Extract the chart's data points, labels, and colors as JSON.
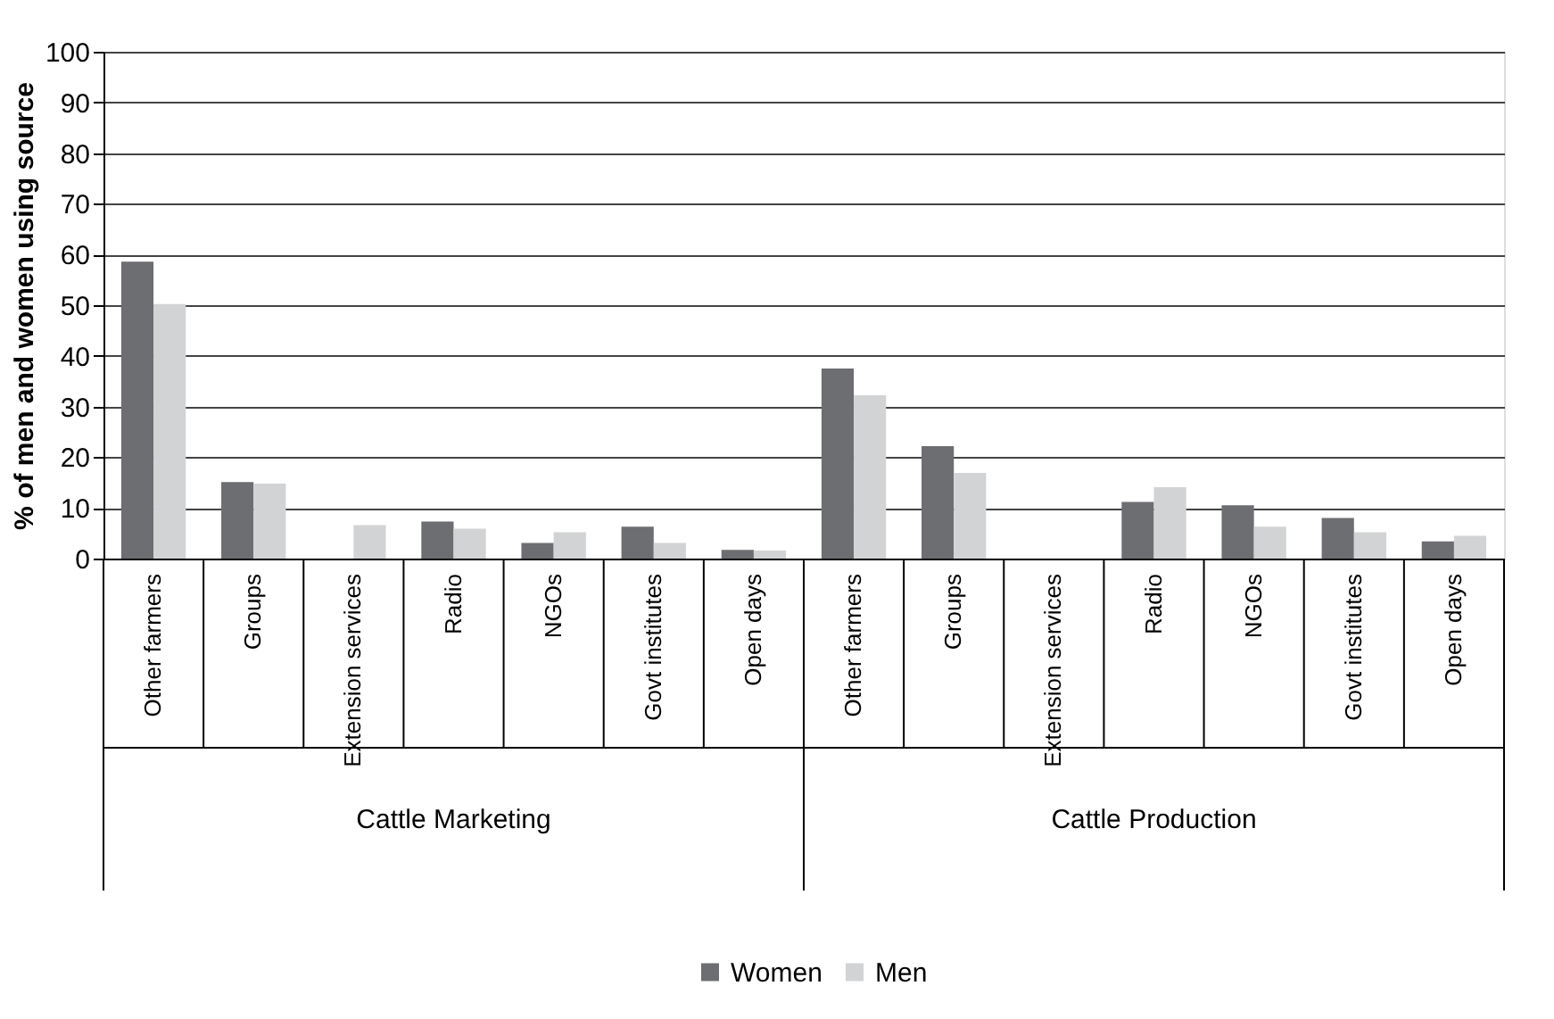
{
  "chart_data": {
    "type": "bar",
    "ylabel": "% of men and women using source",
    "categories": [
      "Other farmers",
      "Groups",
      "Extension services",
      "Radio",
      "NGOs",
      "Govt institutes",
      "Open days",
      "Other farmers",
      "Groups",
      "Extension services",
      "Radio",
      "NGOs",
      "Govt institutes",
      "Open days"
    ],
    "series": [
      {
        "name": "Women",
        "color": "#6d6e71",
        "values": [
          58.6,
          15.1,
          0,
          7.3,
          3.1,
          6.3,
          1.7,
          37.5,
          22.2,
          0,
          11.2,
          10.5,
          8.0,
          3.4
        ]
      },
      {
        "name": "Men",
        "color": "#d1d3d4",
        "values": [
          50.2,
          14.8,
          6.6,
          5.9,
          5.2,
          3.1,
          1.6,
          32.2,
          16.9,
          0,
          14.1,
          6.3,
          5.2,
          4.5
        ]
      }
    ],
    "annotations": [
      "Cattle Marketing",
      "Cattle Production"
    ],
    "ylim": [
      0,
      100
    ],
    "yticks": [
      0,
      10,
      20,
      30,
      40,
      50,
      60,
      70,
      80,
      90,
      100
    ],
    "grid": "y",
    "legend": "bottom"
  }
}
